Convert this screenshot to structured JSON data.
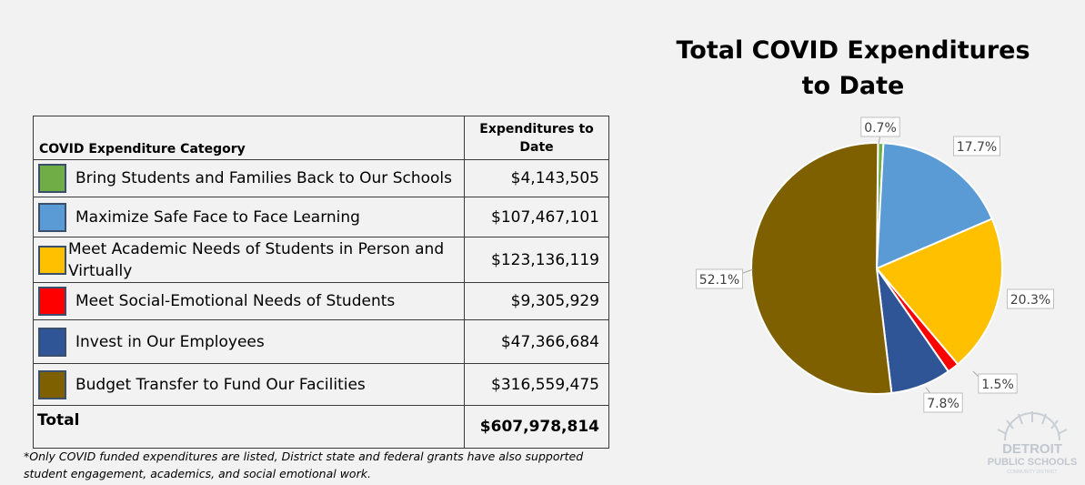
{
  "table": {
    "header_category": "COVID Expenditure  Category",
    "header_amount_line1": "Expenditures to",
    "header_amount_line2": "Date",
    "rows": [
      {
        "label": "Bring Students and Families Back to Our Schools",
        "amount": "$4,143,505",
        "color": "#70ad47"
      },
      {
        "label": "Maximize Safe Face to Face Learning",
        "amount": "$107,467,101",
        "color": "#5b9bd5"
      },
      {
        "label": "Meet Academic Needs of Students in Person and Virtually",
        "amount": "$123,136,119",
        "color": "#ffc000"
      },
      {
        "label": "Meet Social-Emotional Needs of Students",
        "amount": "$9,305,929",
        "color": "#ff0000"
      },
      {
        "label": "Invest in Our Employees",
        "amount": "$47,366,684",
        "color": "#2f5597"
      },
      {
        "label": "Budget Transfer to Fund Our Facilities",
        "amount": "$316,559,475",
        "color": "#7f6000"
      }
    ],
    "total_label": "Total",
    "total_amount": "$607,978,814"
  },
  "footnote": "*Only COVID funded expenditures are listed, District state and federal grants have also supported student engagement, academics, and social emotional work.",
  "chart_data": {
    "type": "pie",
    "title_line1": "Total COVID Expenditures",
    "title_line2": "to Date",
    "slices": [
      {
        "category": "Bring Students and Families Back to Our Schools",
        "value": 0.7,
        "label": "0.7%",
        "color": "#70ad47"
      },
      {
        "category": "Maximize Safe Face to Face Learning",
        "value": 17.7,
        "label": "17.7%",
        "color": "#5b9bd5"
      },
      {
        "category": "Meet Academic Needs of Students in Person and Virtually",
        "value": 20.3,
        "label": "20.3%",
        "color": "#ffc000"
      },
      {
        "category": "Meet Social-Emotional Needs of Students",
        "value": 1.5,
        "label": "1.5%",
        "color": "#ff0000"
      },
      {
        "category": "Invest in Our Employees",
        "value": 7.8,
        "label": "7.8%",
        "color": "#2f5597"
      },
      {
        "category": "Budget Transfer to Fund Our Facilities",
        "value": 52.1,
        "label": "52.1%",
        "color": "#7f6000"
      }
    ]
  },
  "logo": {
    "line1": "DETROIT",
    "line2": "PUBLIC SCHOOLS",
    "line3": "COMMUNITY DISTRICT"
  }
}
